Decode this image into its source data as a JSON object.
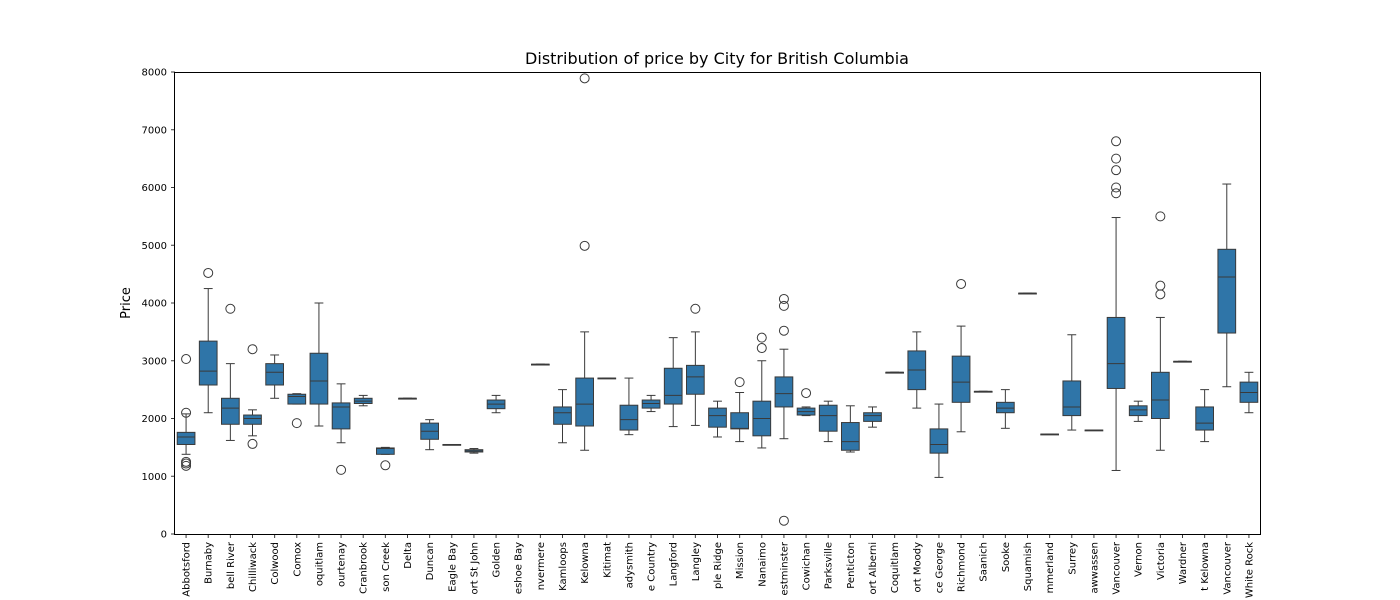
{
  "chart_data": {
    "type": "box",
    "title": "Distribution of price by City for British Columbia",
    "xlabel": "",
    "ylabel": "Price",
    "ylim": [
      0,
      8000
    ],
    "yticks": [
      0,
      1000,
      2000,
      3000,
      4000,
      5000,
      6000,
      7000,
      8000
    ],
    "grid": false,
    "box_color": "#2f75a8",
    "categories": [
      {
        "label": "Abbotsford",
        "shown_label": "Abbotsford",
        "min": 1380,
        "q1": 1550,
        "median": 1680,
        "q3": 1760,
        "max": 2080,
        "outliers": [
          1180,
          1220,
          1250,
          2100,
          3030
        ]
      },
      {
        "label": "Burnaby",
        "shown_label": "Burnaby",
        "min": 2100,
        "q1": 2580,
        "median": 2820,
        "q3": 3340,
        "max": 4250,
        "outliers": [
          4520
        ]
      },
      {
        "label": "Campbell River",
        "shown_label": "bell River",
        "min": 1620,
        "q1": 1900,
        "median": 2180,
        "q3": 2350,
        "max": 2950,
        "outliers": [
          3900
        ]
      },
      {
        "label": "Chilliwack",
        "shown_label": "Chilliwack",
        "min": 1700,
        "q1": 1900,
        "median": 2000,
        "q3": 2060,
        "max": 2150,
        "outliers": [
          1560,
          3200
        ]
      },
      {
        "label": "Colwood",
        "shown_label": "Colwood",
        "min": 2350,
        "q1": 2580,
        "median": 2800,
        "q3": 2950,
        "max": 3100,
        "outliers": []
      },
      {
        "label": "Comox",
        "shown_label": "Comox",
        "min": 2250,
        "q1": 2250,
        "median": 2380,
        "q3": 2420,
        "max": 2430,
        "outliers": [
          1920
        ]
      },
      {
        "label": "Coquitlam",
        "shown_label": "oquitlam",
        "min": 1870,
        "q1": 2250,
        "median": 2650,
        "q3": 3130,
        "max": 4000,
        "outliers": []
      },
      {
        "label": "Courtenay",
        "shown_label": "ourtenay",
        "min": 1580,
        "q1": 1820,
        "median": 2200,
        "q3": 2270,
        "max": 2600,
        "outliers": [
          1110
        ]
      },
      {
        "label": "Cranbrook",
        "shown_label": "Cranbrook",
        "min": 2220,
        "q1": 2260,
        "median": 2300,
        "q3": 2350,
        "max": 2400,
        "outliers": []
      },
      {
        "label": "Dawson Creek",
        "shown_label": "son Creek",
        "min": 1380,
        "q1": 1380,
        "median": 1480,
        "q3": 1490,
        "max": 1500,
        "outliers": [
          1190
        ]
      },
      {
        "label": "Delta",
        "shown_label": "Delta",
        "min": 2350,
        "q1": 2350,
        "median": 2350,
        "q3": 2350,
        "max": 2350,
        "outliers": []
      },
      {
        "label": "Duncan",
        "shown_label": "Duncan",
        "min": 1460,
        "q1": 1640,
        "median": 1780,
        "q3": 1920,
        "max": 1980,
        "outliers": []
      },
      {
        "label": "Eagle Bay",
        "shown_label": "Eagle Bay",
        "min": 1550,
        "q1": 1550,
        "median": 1550,
        "q3": 1550,
        "max": 1550,
        "outliers": []
      },
      {
        "label": "Fort St John",
        "shown_label": "ort St John",
        "min": 1400,
        "q1": 1420,
        "median": 1440,
        "q3": 1460,
        "max": 1480,
        "outliers": []
      },
      {
        "label": "Golden",
        "shown_label": "Golden",
        "min": 2100,
        "q1": 2170,
        "median": 2250,
        "q3": 2320,
        "max": 2400,
        "outliers": []
      },
      {
        "label": "Horseshoe Bay",
        "shown_label": "eshoe Bay",
        "min": null,
        "q1": null,
        "median": null,
        "q3": null,
        "max": null,
        "outliers": []
      },
      {
        "label": "Invermere",
        "shown_label": "nvermere",
        "min": 2940,
        "q1": 2940,
        "median": 2940,
        "q3": 2940,
        "max": 2940,
        "outliers": []
      },
      {
        "label": "Kamloops",
        "shown_label": "Kamloops",
        "min": 1580,
        "q1": 1900,
        "median": 2100,
        "q3": 2200,
        "max": 2500,
        "outliers": []
      },
      {
        "label": "Kelowna",
        "shown_label": "Kelowna",
        "min": 1450,
        "q1": 1870,
        "median": 2250,
        "q3": 2700,
        "max": 3500,
        "outliers": [
          4990,
          7890
        ]
      },
      {
        "label": "Kitimat",
        "shown_label": "Kitimat",
        "min": 2700,
        "q1": 2700,
        "median": 2700,
        "q3": 2700,
        "max": 2700,
        "outliers": []
      },
      {
        "label": "Ladysmith",
        "shown_label": "adysmith",
        "min": 1720,
        "q1": 1800,
        "median": 1980,
        "q3": 2230,
        "max": 2700,
        "outliers": []
      },
      {
        "label": "Lake Country",
        "shown_label": "e Country",
        "min": 2120,
        "q1": 2180,
        "median": 2260,
        "q3": 2320,
        "max": 2400,
        "outliers": []
      },
      {
        "label": "Langford",
        "shown_label": "Langford",
        "min": 1860,
        "q1": 2250,
        "median": 2400,
        "q3": 2870,
        "max": 3400,
        "outliers": []
      },
      {
        "label": "Langley",
        "shown_label": "Langley",
        "min": 1880,
        "q1": 2420,
        "median": 2720,
        "q3": 2920,
        "max": 3500,
        "outliers": [
          3900
        ]
      },
      {
        "label": "Maple Ridge",
        "shown_label": "ple Ridge",
        "min": 1680,
        "q1": 1850,
        "median": 2050,
        "q3": 2180,
        "max": 2300,
        "outliers": []
      },
      {
        "label": "Mission",
        "shown_label": "Mission",
        "min": 1600,
        "q1": 1820,
        "median": 1830,
        "q3": 2100,
        "max": 2450,
        "outliers": [
          2630
        ]
      },
      {
        "label": "Nanaimo",
        "shown_label": "Nanaimo",
        "min": 1490,
        "q1": 1700,
        "median": 2000,
        "q3": 2300,
        "max": 3000,
        "outliers": [
          3220,
          3400
        ]
      },
      {
        "label": "New Westminster",
        "shown_label": "estminster",
        "min": 1650,
        "q1": 2200,
        "median": 2430,
        "q3": 2720,
        "max": 3200,
        "outliers": [
          230,
          3520,
          3950,
          4070
        ]
      },
      {
        "label": "North Cowichan",
        "shown_label": "Cowichan",
        "min": 2050,
        "q1": 2060,
        "median": 2120,
        "q3": 2180,
        "max": 2200,
        "outliers": [
          2440
        ]
      },
      {
        "label": "Parksville",
        "shown_label": "Parksville",
        "min": 1600,
        "q1": 1780,
        "median": 2050,
        "q3": 2230,
        "max": 2300,
        "outliers": []
      },
      {
        "label": "Penticton",
        "shown_label": "Penticton",
        "min": 1420,
        "q1": 1450,
        "median": 1600,
        "q3": 1930,
        "max": 2220,
        "outliers": []
      },
      {
        "label": "Port Alberni",
        "shown_label": "ort Alberni",
        "min": 1850,
        "q1": 1950,
        "median": 2050,
        "q3": 2100,
        "max": 2200,
        "outliers": []
      },
      {
        "label": "Port Coquitlam",
        "shown_label": "Coquitlam",
        "min": 2800,
        "q1": 2800,
        "median": 2800,
        "q3": 2800,
        "max": 2800,
        "outliers": []
      },
      {
        "label": "Port Moody",
        "shown_label": "ort Moody",
        "min": 2180,
        "q1": 2500,
        "median": 2840,
        "q3": 3170,
        "max": 3500,
        "outliers": []
      },
      {
        "label": "Prince George",
        "shown_label": "ce George",
        "min": 980,
        "q1": 1400,
        "median": 1550,
        "q3": 1820,
        "max": 2250,
        "outliers": []
      },
      {
        "label": "Richmond",
        "shown_label": "Richmond",
        "min": 1770,
        "q1": 2280,
        "median": 2630,
        "q3": 3080,
        "max": 3600,
        "outliers": [
          4330
        ]
      },
      {
        "label": "Saanich",
        "shown_label": "Saanich",
        "min": 2470,
        "q1": 2470,
        "median": 2470,
        "q3": 2470,
        "max": 2470,
        "outliers": []
      },
      {
        "label": "Sooke",
        "shown_label": "Sooke",
        "min": 1830,
        "q1": 2100,
        "median": 2180,
        "q3": 2280,
        "max": 2500,
        "outliers": []
      },
      {
        "label": "Squamish",
        "shown_label": "Squamish",
        "min": 4170,
        "q1": 4170,
        "median": 4170,
        "q3": 4170,
        "max": 4170,
        "outliers": []
      },
      {
        "label": "Summerland",
        "shown_label": "mmerland",
        "min": 1730,
        "q1": 1730,
        "median": 1730,
        "q3": 1730,
        "max": 1730,
        "outliers": []
      },
      {
        "label": "Surrey",
        "shown_label": "Surrey",
        "min": 1800,
        "q1": 2050,
        "median": 2200,
        "q3": 2650,
        "max": 3450,
        "outliers": []
      },
      {
        "label": "Tsawwassen",
        "shown_label": "awwassen",
        "min": 1800,
        "q1": 1800,
        "median": 1800,
        "q3": 1800,
        "max": 1800,
        "outliers": []
      },
      {
        "label": "Vancouver",
        "shown_label": "Vancouver",
        "min": 1100,
        "q1": 2520,
        "median": 2950,
        "q3": 3750,
        "max": 5480,
        "outliers": [
          5900,
          6000,
          6300,
          6500,
          6800
        ]
      },
      {
        "label": "Vernon",
        "shown_label": "Vernon",
        "min": 1950,
        "q1": 2050,
        "median": 2150,
        "q3": 2220,
        "max": 2300,
        "outliers": []
      },
      {
        "label": "Victoria",
        "shown_label": "Victoria",
        "min": 1450,
        "q1": 2000,
        "median": 2320,
        "q3": 2800,
        "max": 3750,
        "outliers": [
          4150,
          4300,
          5500
        ]
      },
      {
        "label": "Wardner",
        "shown_label": "Wardner",
        "min": 2990,
        "q1": 2990,
        "median": 2990,
        "q3": 2990,
        "max": 2990,
        "outliers": []
      },
      {
        "label": "West Kelowna",
        "shown_label": "t Kelowna",
        "min": 1600,
        "q1": 1800,
        "median": 1920,
        "q3": 2200,
        "max": 2500,
        "outliers": []
      },
      {
        "label": "West Vancouver",
        "shown_label": "Vancouver",
        "min": 2550,
        "q1": 3480,
        "median": 4450,
        "q3": 4930,
        "max": 6060,
        "outliers": []
      },
      {
        "label": "White Rock",
        "shown_label": "White Rock",
        "min": 2100,
        "q1": 2280,
        "median": 2450,
        "q3": 2630,
        "max": 2800,
        "outliers": []
      }
    ]
  }
}
